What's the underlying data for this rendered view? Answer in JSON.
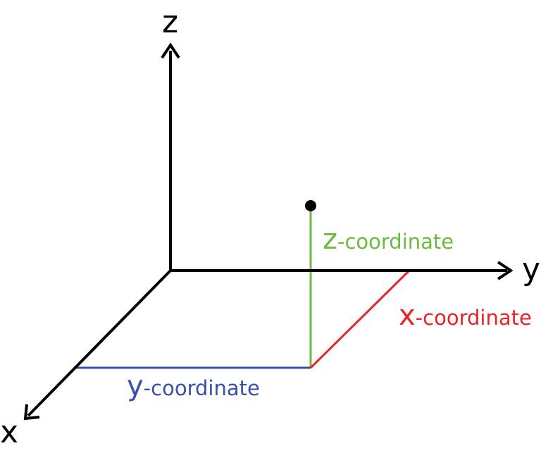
{
  "axes": {
    "x_label": "x",
    "y_label": "y",
    "z_label": "z"
  },
  "coordinates": {
    "z": {
      "prefix": "z",
      "suffix": "-coordinate",
      "color": "#6cbb3c"
    },
    "x": {
      "prefix": "x",
      "suffix": "-coordinate",
      "color": "#e8232a"
    },
    "y": {
      "prefix": "y",
      "suffix": "-coordinate",
      "color": "#3a4fa8"
    }
  },
  "colors": {
    "axis": "#000000",
    "point": "#000000"
  }
}
